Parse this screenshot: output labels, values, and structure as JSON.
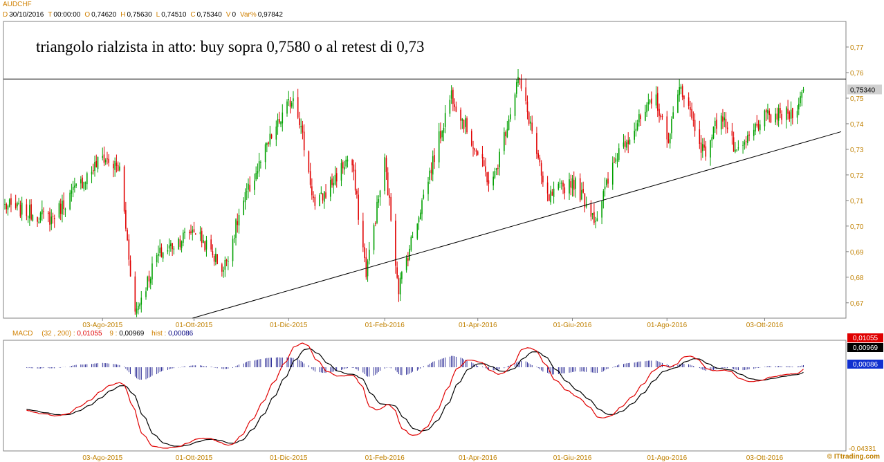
{
  "header": {
    "symbol": "AUDCHF",
    "items": [
      {
        "key": "D",
        "value": "30/10/2016"
      },
      {
        "key": "T",
        "value": "00:00:00"
      },
      {
        "key": "O",
        "value": "0,74620"
      },
      {
        "key": "H",
        "value": "0,75630"
      },
      {
        "key": "L",
        "value": "0,74510"
      },
      {
        "key": "C",
        "value": "0,75340"
      },
      {
        "key": "V",
        "value": "0"
      },
      {
        "key": "Var%",
        "value": "0,97842"
      }
    ],
    "key_color": "#d08000",
    "value_color": "#000000"
  },
  "chart_data": [
    {
      "type": "candlestick",
      "series_name": "AUDCHF",
      "annotation": "triangolo rialzista in atto: buy sopra 0,7580 o al retest di 0,73",
      "ylim": [
        0.664,
        0.78
      ],
      "y_ticks": [
        "0,77",
        "0,76",
        "0,75",
        "0,74",
        "0,73",
        "0,72",
        "0,71",
        "0,70",
        "0,69",
        "0,68",
        "0,67"
      ],
      "x_ticks": [
        "03-Ago-2015",
        "01-Ott-2015",
        "01-Dic-2015",
        "01-Feb-2016",
        "01-Apr-2016",
        "01-Giu-2016",
        "01-Ago-2016",
        "03-Ott-2016"
      ],
      "last_value_label": "0,75340",
      "resistance_level": 0.7575,
      "support_line": {
        "from": [
          "30/09/2015",
          0.664
        ],
        "to": [
          "30/10/2016",
          0.733
        ]
      },
      "up_color": "#00a000",
      "down_color": "#e00000",
      "anchors": [
        [
          "01/06/2015",
          0.708
        ],
        [
          "01/07/2015",
          0.703
        ],
        [
          "03/08/2015",
          0.727
        ],
        [
          "14/08/2015",
          0.722
        ],
        [
          "24/08/2015",
          0.666
        ],
        [
          "07/09/2015",
          0.688
        ],
        [
          "01/10/2015",
          0.699
        ],
        [
          "20/10/2015",
          0.683
        ],
        [
          "01/11/2015",
          0.708
        ],
        [
          "20/11/2015",
          0.735
        ],
        [
          "05/12/2015",
          0.752
        ],
        [
          "18/12/2015",
          0.707
        ],
        [
          "10/01/2016",
          0.728
        ],
        [
          "20/01/2016",
          0.682
        ],
        [
          "01/02/2016",
          0.725
        ],
        [
          "10/02/2016",
          0.676
        ],
        [
          "15/03/2016",
          0.752
        ],
        [
          "10/04/2016",
          0.715
        ],
        [
          "27/04/2016",
          0.758
        ],
        [
          "05/05/2016",
          0.74
        ],
        [
          "15/05/2016",
          0.71
        ],
        [
          "01/06/2016",
          0.718
        ],
        [
          "16/06/2016",
          0.703
        ],
        [
          "01/07/2016",
          0.73
        ],
        [
          "25/07/2016",
          0.75
        ],
        [
          "01/08/2016",
          0.733
        ],
        [
          "10/08/2016",
          0.755
        ],
        [
          "25/08/2016",
          0.728
        ],
        [
          "05/09/2016",
          0.745
        ],
        [
          "15/09/2016",
          0.727
        ],
        [
          "01/10/2016",
          0.742
        ],
        [
          "20/10/2016",
          0.744
        ],
        [
          "30/10/2016",
          0.7534
        ]
      ]
    },
    {
      "type": "line",
      "title": "MACD",
      "params": "(32 , 200) :",
      "macd_value": "0,01055",
      "signal_period": "9 :",
      "signal_value": "0,00969",
      "hist_label": "hist :",
      "hist_value": "0,00086",
      "y_min_label": "-0,04331",
      "colors": {
        "macd": "#e00000",
        "signal": "#000000",
        "hist": "#000080"
      },
      "x_ticks": [
        "03-Ago-2015",
        "01-Ott-2015",
        "01-Dic-2015",
        "01-Feb-2016",
        "01-Apr-2016",
        "01-Giu-2016",
        "01-Ago-2016",
        "03-Ott-2016"
      ]
    }
  ],
  "footer": {
    "brand": "© ITtrading.com"
  }
}
